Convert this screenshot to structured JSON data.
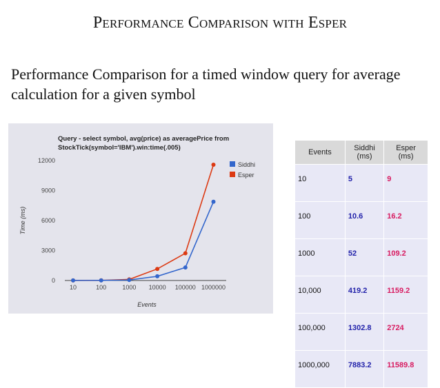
{
  "slide": {
    "title": "Performance Comparison with Esper",
    "subtitle": "Performance Comparison for a timed window query for average calculation for a given symbol"
  },
  "chart_data": {
    "type": "line",
    "title_lines": [
      "Query - select symbol, avg(price) as averagePrice from",
      "StockTick(symbol='IBM').win:time(.005)"
    ],
    "xlabel": "Events",
    "ylabel": "Time (ms)",
    "categories": [
      "10",
      "100",
      "1000",
      "10000",
      "100000",
      "1000000"
    ],
    "yticks": [
      "0",
      "3000",
      "6000",
      "9000",
      "12000"
    ],
    "ylim": [
      0,
      12000
    ],
    "grid": false,
    "legend_placement": "right",
    "series": [
      {
        "name": "Siddhi",
        "color": "#3366cc",
        "values": [
          5,
          10.6,
          52,
          419.2,
          1302.8,
          7883.2
        ]
      },
      {
        "name": "Esper",
        "color": "#dc3912",
        "values": [
          9,
          16.2,
          109.2,
          1159.2,
          2724,
          11589.8
        ]
      }
    ]
  },
  "table": {
    "headers": [
      "Events",
      "Siddhi\n(ms)",
      "Esper\n(ms)"
    ],
    "rows": [
      [
        "10",
        "5",
        "9"
      ],
      [
        "100",
        "10.6",
        "16.2"
      ],
      [
        "1000",
        "52",
        "109.2"
      ],
      [
        "10,000",
        "419.2",
        "1159.2"
      ],
      [
        "100,000",
        "1302.8",
        "2724"
      ],
      [
        "1000,000",
        "7883.2",
        "11589.8"
      ]
    ]
  }
}
